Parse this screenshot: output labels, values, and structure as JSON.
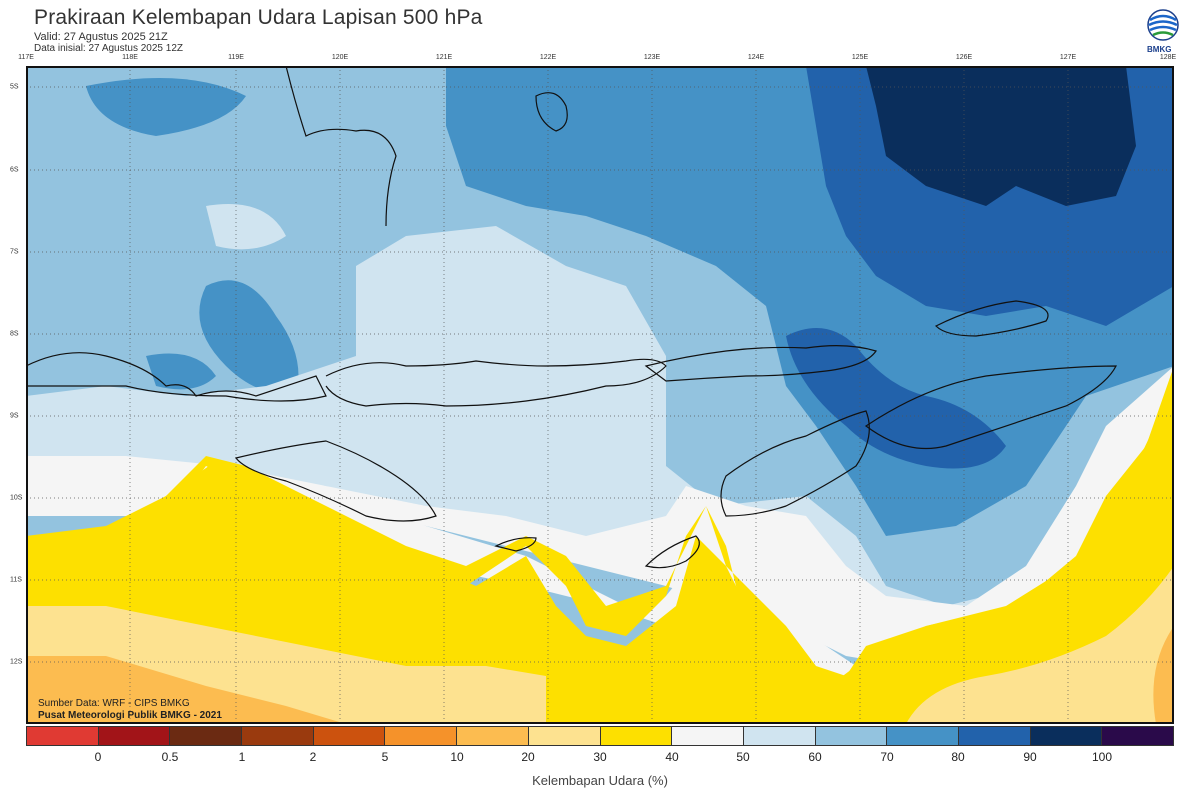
{
  "header": {
    "title": "Prakiraan Kelembapan Udara Lapisan 500 hPa",
    "valid": "Valid: 27 Agustus 2025 21Z",
    "initial": "Data inisial: 27 Agustus 2025 12Z"
  },
  "logo": {
    "label": "BMKG",
    "icon": "bmkg-logo-icon"
  },
  "map": {
    "region": "Nusa Tenggara",
    "lon_labels": [
      "117E",
      "118E",
      "119E",
      "120E",
      "121E",
      "122E",
      "123E",
      "124E",
      "125E",
      "126E",
      "127E",
      "128E"
    ],
    "lat_labels": [
      "5S",
      "6S",
      "7S",
      "8S",
      "9S",
      "10S",
      "11S",
      "12S"
    ],
    "lon_range": [
      117,
      128
    ],
    "lat_range": [
      -4.8,
      -12.8
    ],
    "grid": "dotted"
  },
  "source": {
    "line1": "Sumber Data: WRF - CIPS BMKG",
    "line2": "Pusat Meteorologi Publik BMKG - 2021"
  },
  "colorbar": {
    "colors": [
      "#e03a33",
      "#a21418",
      "#6b2a12",
      "#9a3a0e",
      "#cc520e",
      "#f5922a",
      "#fcbc50",
      "#fde290",
      "#fde000",
      "#f5f5f5",
      "#d0e4f0",
      "#93c3df",
      "#4592c6",
      "#2262ab",
      "#0a2e5c",
      "#2a0a4a"
    ],
    "ticks": [
      "0",
      "0.5",
      "1",
      "2",
      "5",
      "10",
      "20",
      "30",
      "40",
      "50",
      "60",
      "70",
      "80",
      "90",
      "100"
    ],
    "label": "Kelembapan Udara (%)"
  }
}
